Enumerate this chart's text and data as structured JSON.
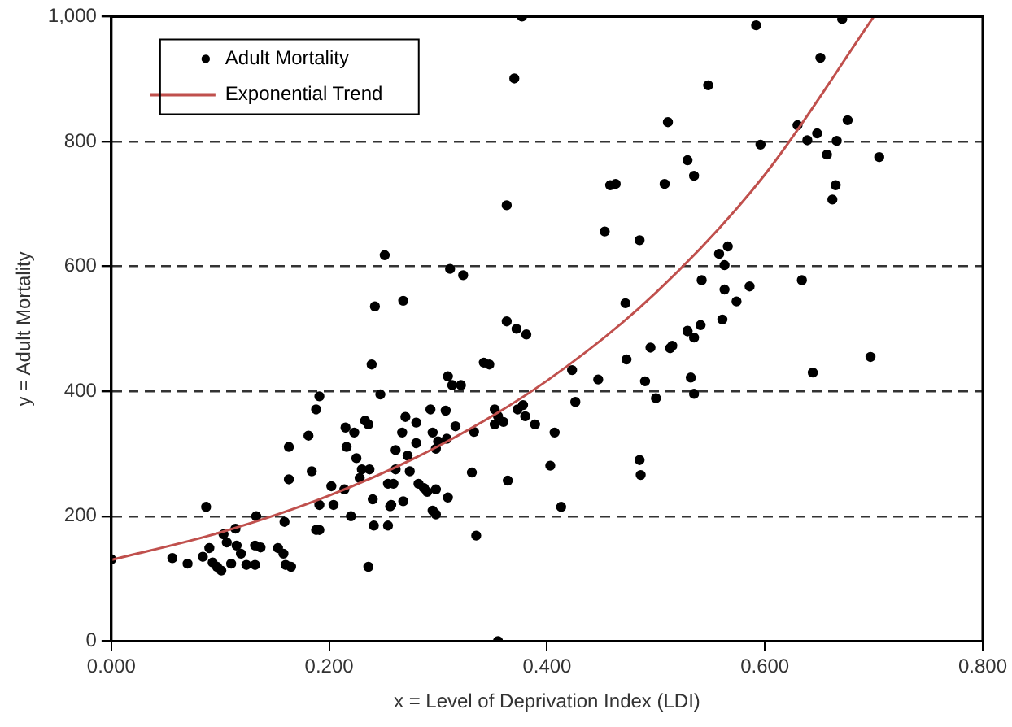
{
  "chart_data": {
    "type": "scatter",
    "xlabel": "x = Level of Deprivation Index (LDI)",
    "ylabel": "y = Adult Mortality",
    "xlim": [
      0,
      0.8
    ],
    "xticks": [
      {
        "value": 0,
        "label": "0.000"
      },
      {
        "value": 0.2,
        "label": "0.200"
      },
      {
        "value": 0.4,
        "label": "0.400"
      },
      {
        "value": 0.6,
        "label": "0.600"
      },
      {
        "value": 0.8,
        "label": "0.800"
      }
    ],
    "ylim": [
      0,
      1000
    ],
    "yticks": [
      0,
      200,
      400,
      600,
      800,
      {
        "value": 1000,
        "label": "1,000"
      }
    ],
    "grid": "y",
    "legend": "top left",
    "marker": "circle",
    "series": [
      {
        "name": "Adult Mortality",
        "color": "#000000",
        "x": [
          0.0,
          0.056,
          0.07,
          0.087,
          0.084,
          0.09,
          0.093,
          0.097,
          0.101,
          0.103,
          0.106,
          0.11,
          0.114,
          0.115,
          0.119,
          0.124,
          0.132,
          0.133,
          0.132,
          0.137,
          0.153,
          0.158,
          0.16,
          0.165,
          0.159,
          0.163,
          0.163,
          0.181,
          0.184,
          0.188,
          0.191,
          0.191,
          0.188,
          0.191,
          0.202,
          0.204,
          0.214,
          0.215,
          0.216,
          0.223,
          0.22,
          0.225,
          0.228,
          0.23,
          0.233,
          0.236,
          0.236,
          0.237,
          0.239,
          0.242,
          0.24,
          0.241,
          0.247,
          0.251,
          0.256,
          0.259,
          0.254,
          0.257,
          0.254,
          0.268,
          0.27,
          0.267,
          0.261,
          0.261,
          0.272,
          0.274,
          0.268,
          0.28,
          0.28,
          0.282,
          0.287,
          0.29,
          0.293,
          0.295,
          0.298,
          0.298,
          0.295,
          0.298,
          0.3,
          0.307,
          0.309,
          0.309,
          0.308,
          0.311,
          0.313,
          0.316,
          0.321,
          0.323,
          0.331,
          0.333,
          0.335,
          0.342,
          0.347,
          0.352,
          0.352,
          0.355,
          0.355,
          0.36,
          0.363,
          0.363,
          0.364,
          0.37,
          0.372,
          0.373,
          0.377,
          0.378,
          0.381,
          0.38,
          0.389,
          0.403,
          0.407,
          0.413,
          0.423,
          0.426,
          0.447,
          0.453,
          0.458,
          0.463,
          0.472,
          0.473,
          0.485,
          0.485,
          0.486,
          0.49,
          0.495,
          0.5,
          0.508,
          0.511,
          0.513,
          0.515,
          0.529,
          0.548,
          0.529,
          0.535,
          0.542,
          0.529,
          0.535,
          0.541,
          0.532,
          0.535,
          0.558,
          0.566,
          0.563,
          0.563,
          0.561,
          0.574,
          0.586,
          0.592,
          0.596,
          0.63,
          0.634,
          0.639,
          0.644,
          0.648,
          0.651,
          0.657,
          0.666,
          0.665,
          0.662,
          0.671,
          0.676,
          0.697,
          0.705
        ],
        "values": [
          131,
          133,
          124,
          215,
          135,
          149,
          126,
          119,
          113,
          171,
          158,
          124,
          180,
          153,
          140,
          122,
          122,
          200,
          153,
          150,
          149,
          140,
          122,
          119,
          191,
          259,
          311,
          329,
          272,
          371,
          392,
          218,
          178,
          178,
          248,
          218,
          243,
          342,
          311,
          334,
          200,
          293,
          261,
          275,
          353,
          119,
          347,
          275,
          443,
          536,
          227,
          185,
          395,
          618,
          216,
          252,
          252,
          218,
          185,
          545,
          359,
          334,
          306,
          275,
          297,
          272,
          224,
          350,
          317,
          252,
          245,
          239,
          371,
          334,
          308,
          243,
          209,
          203,
          320,
          369,
          424,
          230,
          324,
          596,
          410,
          344,
          410,
          586,
          270,
          335,
          169,
          446,
          443,
          371,
          347,
          360,
          0,
          351,
          698,
          512,
          257,
          901,
          500,
          371,
          1000,
          378,
          491,
          360,
          347,
          281,
          334,
          215,
          434,
          383,
          419,
          656,
          730,
          732,
          541,
          451,
          642,
          290,
          266,
          416,
          470,
          389,
          732,
          831,
          469,
          473,
          496,
          890,
          770,
          745,
          578,
          497,
          486,
          506,
          422,
          396,
          620,
          632,
          602,
          563,
          515,
          544,
          568,
          986,
          795,
          826,
          578,
          802,
          430,
          813,
          934,
          779,
          801,
          730,
          707,
          996,
          834,
          455,
          775
        ]
      },
      {
        "name": "Exponential Trend",
        "type": "line",
        "color": "#c0504d",
        "marker": "none",
        "x": [
          0,
          0.1,
          0.2,
          0.3,
          0.4,
          0.5,
          0.6,
          0.7
        ],
        "values": [
          130,
          174,
          233,
          312,
          417,
          558,
          747,
          1000
        ]
      }
    ]
  }
}
